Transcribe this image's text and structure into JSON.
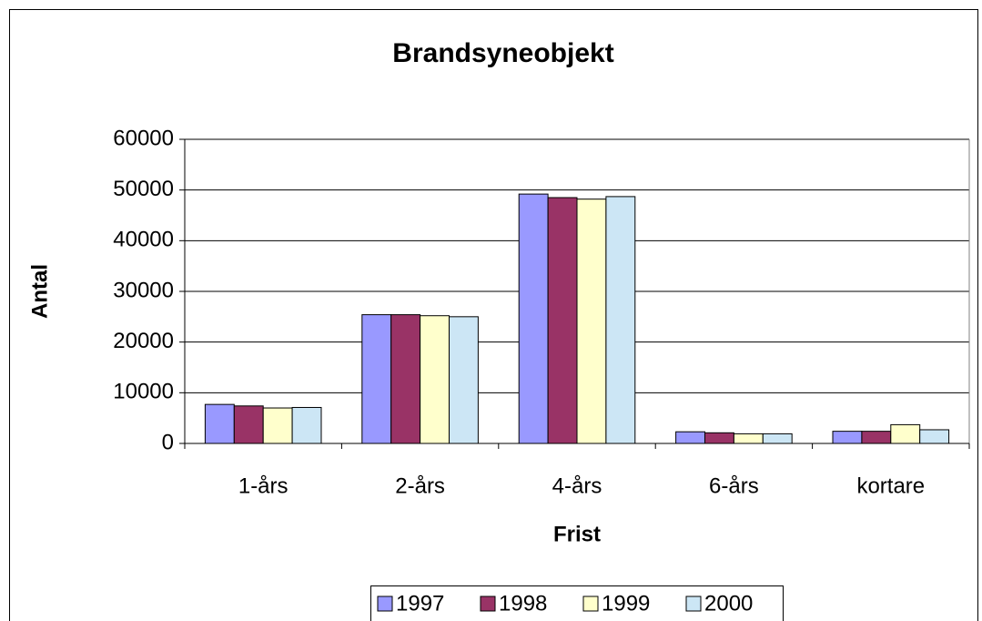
{
  "chart_data": {
    "type": "bar",
    "title": "Brandsyneobjekt",
    "x_label": "Frist",
    "y_label": "Antal",
    "categories": [
      "1-års",
      "2-års",
      "4-års",
      "6-års",
      "kortare"
    ],
    "series": [
      {
        "name": "1997",
        "color": "#9999ff",
        "values": [
          7700,
          25400,
          49200,
          2300,
          2400
        ]
      },
      {
        "name": "1998",
        "color": "#993366",
        "values": [
          7400,
          25400,
          48500,
          2100,
          2400
        ]
      },
      {
        "name": "1999",
        "color": "#ffffcc",
        "values": [
          7000,
          25200,
          48200,
          1900,
          3700
        ]
      },
      {
        "name": "2000",
        "color": "#cce6f5",
        "values": [
          7100,
          25000,
          48700,
          1900,
          2700
        ]
      }
    ],
    "ylim": [
      0,
      60000
    ],
    "yticks": [
      0,
      10000,
      20000,
      30000,
      40000,
      50000,
      60000
    ],
    "grid": true,
    "legend": "bottom"
  }
}
